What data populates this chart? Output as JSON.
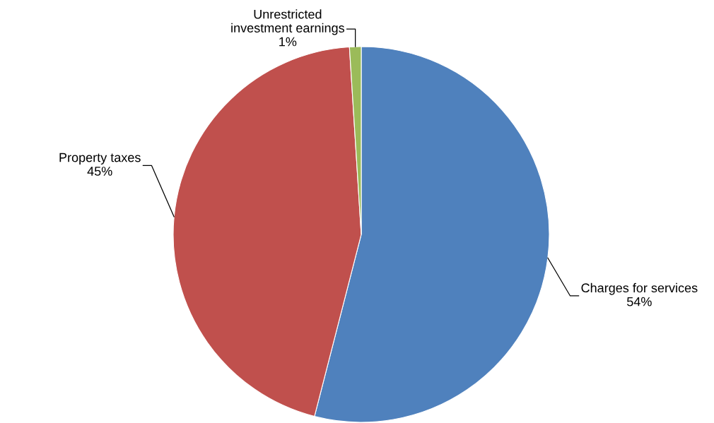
{
  "chart_data": {
    "type": "pie",
    "categories": [
      "Charges for services",
      "Property taxes",
      "Unrestricted\ninvestment earnings"
    ],
    "values": [
      54,
      45,
      1
    ],
    "colors": [
      "#4f81bd",
      "#c0504d",
      "#9bbb59"
    ],
    "value_labels": [
      "54%",
      "45%",
      "1%"
    ],
    "legend": false
  }
}
